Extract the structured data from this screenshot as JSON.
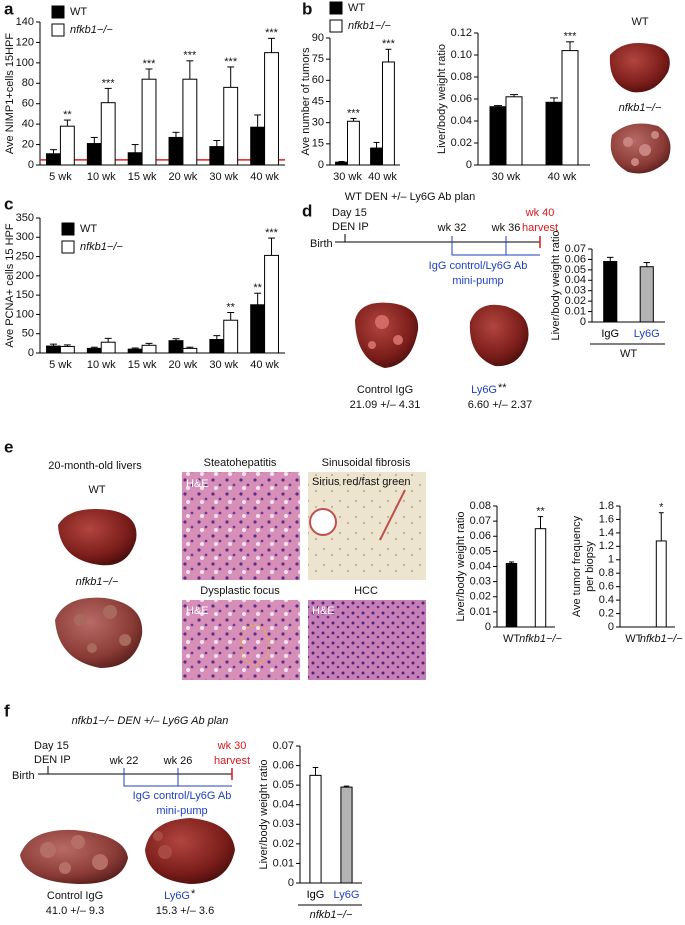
{
  "panel_labels": [
    "a",
    "b",
    "c",
    "d",
    "e",
    "f"
  ],
  "chart_data": [
    {
      "type": "bar",
      "ylabel": "Ave NIMP1+cells 15HPF",
      "categories": [
        "5 wk",
        "10 wk",
        "15 wk",
        "20 wk",
        "30 wk",
        "40 wk"
      ],
      "ylim": [
        0,
        140
      ],
      "yticks": [
        0,
        20,
        40,
        60,
        80,
        100,
        120,
        140
      ],
      "legend": true,
      "reference_line": {
        "value": 5,
        "color": "#e41a1c"
      },
      "series": [
        {
          "name": "WT",
          "color": "#000000",
          "values": [
            11,
            21,
            12,
            27,
            18,
            37
          ],
          "errors": [
            4,
            6,
            8,
            5,
            6,
            12
          ],
          "stars": [
            null,
            null,
            null,
            null,
            null,
            null
          ]
        },
        {
          "name": "nfkb1−/−",
          "color": "#ffffff",
          "values": [
            38,
            61,
            84,
            84,
            76,
            110
          ],
          "errors": [
            6,
            14,
            10,
            18,
            20,
            14
          ],
          "stars": [
            "**",
            "***",
            "***",
            "***",
            "***",
            "***"
          ]
        }
      ]
    },
    {
      "type": "bar",
      "ylabel": "Ave number of tumors",
      "categories": [
        "30 wk",
        "40 wk"
      ],
      "ylim": [
        0,
        90
      ],
      "yticks": [
        0,
        15,
        30,
        45,
        60,
        75,
        90
      ],
      "legend": true,
      "series": [
        {
          "name": "WT",
          "color": "#000000",
          "values": [
            2,
            12
          ],
          "errors": [
            0.5,
            4
          ],
          "stars": [
            null,
            null
          ]
        },
        {
          "name": "nfkb1−/−",
          "color": "#ffffff",
          "values": [
            31,
            73
          ],
          "errors": [
            2,
            9
          ],
          "stars": [
            "***",
            "***"
          ]
        }
      ]
    },
    {
      "type": "bar",
      "ylabel": "Liver/body weight ratio",
      "categories": [
        "30 wk",
        "40 wk"
      ],
      "ylim": [
        0,
        0.12
      ],
      "yticks": [
        0,
        0.02,
        0.04,
        0.06,
        0.08,
        {
          "value": 0.1,
          "label": "0.10"
        },
        0.12
      ],
      "legend": false,
      "series": [
        {
          "color": "#000000",
          "values": [
            0.053,
            0.057
          ],
          "errors": [
            0.001,
            0.004
          ],
          "stars": [
            null,
            null
          ]
        },
        {
          "color": "#ffffff",
          "values": [
            0.062,
            0.104
          ],
          "errors": [
            0.002,
            0.008
          ],
          "stars": [
            null,
            "***"
          ]
        }
      ]
    },
    {
      "type": "bar",
      "ylabel": "Ave PCNA+ cells 15 HPF",
      "categories": [
        "5 wk",
        "10 wk",
        "15 wk",
        "20 wk",
        "30 wk",
        "40 wk"
      ],
      "ylim": [
        0,
        350
      ],
      "yticks": [
        0,
        50,
        100,
        150,
        200,
        250,
        300,
        350
      ],
      "legend": true,
      "series": [
        {
          "name": "WT",
          "color": "#000000",
          "values": [
            18,
            12,
            10,
            32,
            35,
            125
          ],
          "errors": [
            5,
            3,
            3,
            5,
            10,
            30
          ],
          "stars": [
            null,
            null,
            null,
            null,
            null,
            "**"
          ]
        },
        {
          "name": "nfkb1−/−",
          "color": "#ffffff",
          "values": [
            17,
            28,
            20,
            12,
            85,
            253
          ],
          "errors": [
            4,
            10,
            5,
            3,
            20,
            45
          ],
          "stars": [
            null,
            null,
            null,
            null,
            "**",
            "***"
          ]
        }
      ]
    },
    {
      "type": "bar",
      "ylabel": "Liver/body weight ratio",
      "categories": [
        "IgG",
        "Ly6G"
      ],
      "category_colors": [
        "#000000",
        "#1f3fbf"
      ],
      "ylim": [
        0,
        0.07
      ],
      "yticks": [
        0,
        0.01,
        0.02,
        0.03,
        0.04,
        0.05,
        0.06,
        0.07
      ],
      "legend": false,
      "group_label": "WT",
      "series": [
        {
          "colors": [
            "#000000",
            "#b3b3b3"
          ],
          "values": [
            0.058,
            0.053
          ],
          "errors": [
            0.004,
            0.004
          ],
          "stars": [
            null,
            null
          ]
        }
      ]
    },
    {
      "type": "bar",
      "ylabel": "Liver/body weight ratio",
      "categories": [
        "WT",
        "nfkb1−/−"
      ],
      "ylim": [
        0,
        0.08
      ],
      "yticks": [
        0,
        0.01,
        0.02,
        0.03,
        0.04,
        0.05,
        0.06,
        0.07,
        0.08
      ],
      "legend": false,
      "series": [
        {
          "colors": [
            "#000000",
            "#ffffff"
          ],
          "values": [
            0.042,
            0.065
          ],
          "errors": [
            0.001,
            0.008
          ],
          "stars": [
            null,
            "**"
          ]
        }
      ]
    },
    {
      "type": "bar",
      "ylabel": [
        "Ave tumor frequency",
        "per biopsy"
      ],
      "categories": [
        "WT",
        "nfkb1−/−"
      ],
      "ylim": [
        0,
        1.8
      ],
      "yticks": [
        0,
        0.2,
        0.4,
        0.6,
        0.8,
        1,
        1.2,
        1.4,
        1.6,
        1.8
      ],
      "legend": false,
      "series": [
        {
          "colors": [
            "#000000",
            "#ffffff"
          ],
          "values": [
            0,
            1.28
          ],
          "errors": [
            null,
            0.42
          ],
          "stars": [
            null,
            "*"
          ]
        }
      ]
    },
    {
      "type": "bar",
      "ylabel": "Liver/body weight ratio",
      "categories": [
        "IgG",
        "Ly6G"
      ],
      "category_colors": [
        "#000000",
        "#1f3fbf"
      ],
      "ylim": [
        0,
        0.07
      ],
      "yticks": [
        0,
        0.01,
        0.02,
        0.03,
        0.04,
        0.05,
        0.06,
        0.07
      ],
      "legend": false,
      "group_label": "nfkb1−/−",
      "series": [
        {
          "colors": [
            "#ffffff",
            "#b3b3b3"
          ],
          "values": [
            0.055,
            0.049
          ],
          "errors": [
            0.004,
            0.0005
          ],
          "stars": [
            null,
            null
          ]
        }
      ]
    }
  ],
  "panel_b": {
    "wt": "WT",
    "ko": "nfkb1−/−"
  },
  "panel_d": {
    "title": "WT DEN +/– Ly6G Ab plan",
    "day": "Day 15",
    "den": "DEN IP",
    "birth": "Birth",
    "wk_start": "wk 32",
    "wk_mid": "wk 36",
    "wk_end": "wk 40",
    "harvest": "harvest",
    "treatment": "IgG control/Ly6G Ab",
    "pump": "mini-pump",
    "captions": [
      {
        "name": "Control IgG",
        "stat": "21.09 +/– 4.31"
      },
      {
        "name": "Ly6G",
        "sig": "**",
        "stat": "6.60 +/– 2.37"
      }
    ]
  },
  "panel_e": {
    "title": "20-month-old livers",
    "wt": "WT",
    "ko": "nfkb1−/−",
    "histology": [
      {
        "title": "Steatohepatitis",
        "stain": "H&E"
      },
      {
        "title": "Sinusoidal fibrosis",
        "stain": "Sirius red/fast green"
      },
      {
        "title": "Dysplastic focus",
        "stain": "H&E"
      },
      {
        "title": "HCC",
        "stain": "H&E"
      }
    ]
  },
  "panel_f": {
    "title": "nfkb1−/− DEN +/– Ly6G Ab plan",
    "day": "Day 15",
    "den": "DEN IP",
    "birth": "Birth",
    "wk_start": "wk 22",
    "wk_mid": "wk 26",
    "wk_end": "wk 30",
    "harvest": "harvest",
    "treatment": "IgG control/Ly6G Ab",
    "pump": "mini-pump",
    "captions": [
      {
        "name": "Control IgG",
        "stat": "41.0 +/– 9.3"
      },
      {
        "name": "Ly6G",
        "sig": "*",
        "stat": "15.3 +/– 3.6"
      }
    ]
  }
}
